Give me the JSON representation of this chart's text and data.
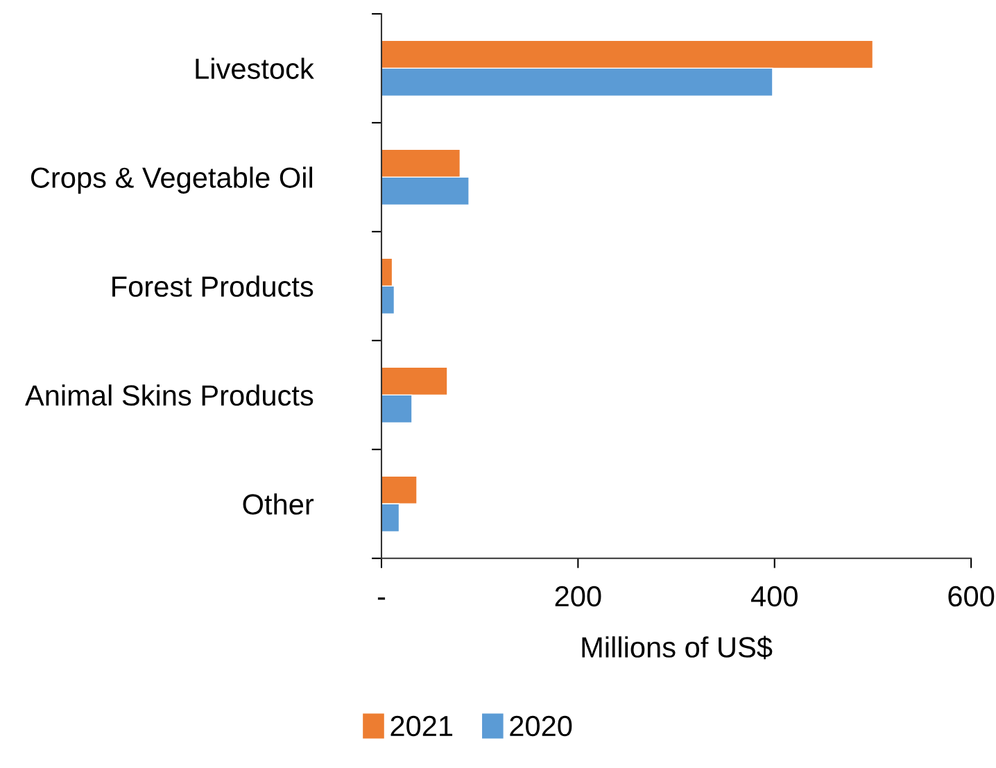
{
  "chart_data": {
    "type": "bar",
    "orientation": "horizontal",
    "categories": [
      "Livestock",
      "Crops & Vegetable Oil",
      "Forest Products",
      "Animal Skins Products",
      "Other"
    ],
    "series": [
      {
        "name": "2021",
        "color": "#ed7d31",
        "values": [
          500,
          80,
          11,
          67,
          36
        ]
      },
      {
        "name": "2020",
        "color": "#5b9bd5",
        "values": [
          398,
          89,
          13,
          31,
          18
        ]
      }
    ],
    "xlabel": "Millions of US$",
    "xlim": [
      0,
      600
    ],
    "xticks": [
      {
        "value": 0,
        "label": "-"
      },
      200,
      400,
      600
    ],
    "grid": false,
    "legend": "bottom"
  }
}
